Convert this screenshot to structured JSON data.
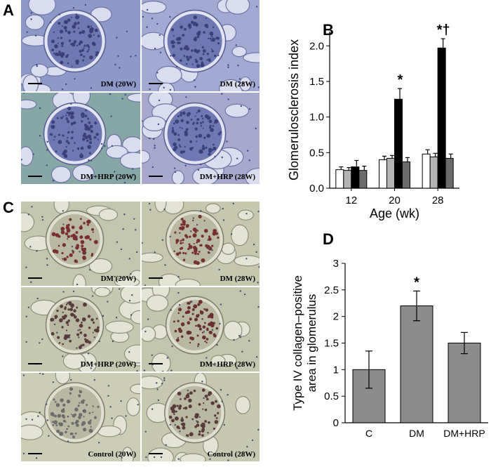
{
  "panel_letters": {
    "a": "A",
    "b": "B",
    "c": "C",
    "d": "D"
  },
  "panel_a": {
    "images": [
      {
        "caption": "DM (20W)",
        "tint": "#8d9ac8"
      },
      {
        "caption": "DM (28W)",
        "tint": "#a3aad2"
      },
      {
        "caption": "DM+HRP (20W)",
        "tint": "#86a7a6"
      },
      {
        "caption": "DM+HRP (28W)",
        "tint": "#a7a8cc"
      }
    ]
  },
  "panel_c": {
    "images": [
      {
        "caption": "DM (20W)",
        "tint": "#c3c7ad",
        "stain": "#7a2f2f"
      },
      {
        "caption": "DM (28W)",
        "tint": "#c6c8ae",
        "stain": "#7a2f2f"
      },
      {
        "caption": "DM+HRP (20W)",
        "tint": "#c5c9b0",
        "stain": "#5a3a3a"
      },
      {
        "caption": "DM+HRP (28W)",
        "tint": "#c2c6ac",
        "stain": "#6a2f30"
      },
      {
        "caption": "Control (20W)",
        "tint": "#cbcdb5",
        "stain": "#6d6d6d"
      },
      {
        "caption": "Control (28W)",
        "tint": "#c6c8b0",
        "stain": "#5a3a3a"
      }
    ]
  },
  "chart_data": [
    {
      "panel": "B",
      "type": "bar",
      "ylabel": "Glomerulosclerosis index",
      "xlabel": "Age (wk)",
      "categories": [
        "12",
        "20",
        "28"
      ],
      "ylim": [
        0,
        2.2
      ],
      "yticks": [
        "0.0",
        "0.5",
        "1.0",
        "1.5",
        "2.0"
      ],
      "series": [
        {
          "color": "#ffffff",
          "values": [
            0.26,
            0.4,
            0.48
          ],
          "errors": [
            0.04,
            0.05,
            0.06
          ]
        },
        {
          "color": "#b4b4b4",
          "values": [
            0.25,
            0.42,
            0.44
          ],
          "errors": [
            0.04,
            0.04,
            0.05
          ]
        },
        {
          "color": "#000000",
          "values": [
            0.3,
            1.25,
            1.97
          ],
          "errors": [
            0.09,
            0.15,
            0.13
          ]
        },
        {
          "color": "#6b6b6b",
          "values": [
            0.25,
            0.37,
            0.42
          ],
          "errors": [
            0.06,
            0.06,
            0.06
          ]
        }
      ],
      "annotations": [
        {
          "category": "20",
          "text": "*"
        },
        {
          "category": "28",
          "text": "*†"
        }
      ]
    },
    {
      "panel": "D",
      "type": "bar",
      "ylabel_lines": [
        "Type IV collagen–positive",
        "area in glomerulus"
      ],
      "categories": [
        "C",
        "DM",
        "DM+HRP"
      ],
      "values": [
        1.0,
        2.2,
        1.5
      ],
      "errors": [
        0.35,
        0.28,
        0.2
      ],
      "ylim": [
        0,
        3
      ],
      "yticks": [
        "0",
        "0.5",
        "1",
        "1.5",
        "2",
        "2.5",
        "3"
      ],
      "bar_color": "#8c8c8c",
      "annotations": [
        {
          "category": "DM",
          "text": "*"
        }
      ]
    }
  ]
}
